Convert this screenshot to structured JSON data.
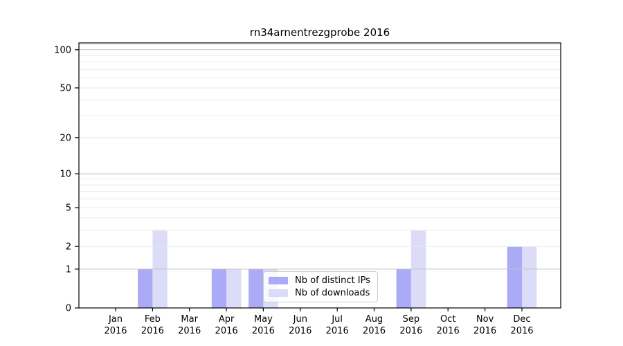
{
  "title": "rn34arnentrezgprobe 2016",
  "chart_data": {
    "type": "bar",
    "title": "rn34arnentrezgprobe 2016",
    "categories": [
      "Jan 2016",
      "Feb 2016",
      "Mar 2016",
      "Apr 2016",
      "May 2016",
      "Jun 2016",
      "Jul 2016",
      "Aug 2016",
      "Sep 2016",
      "Oct 2016",
      "Nov 2016",
      "Dec 2016"
    ],
    "series": [
      {
        "name": "Nb of distinct IPs",
        "color": "#aaaaf6",
        "values": [
          0,
          1,
          0,
          1,
          1,
          0,
          0,
          0,
          1,
          0,
          0,
          2
        ]
      },
      {
        "name": "Nb of downloads",
        "color": "#dcdcf9",
        "values": [
          0,
          3,
          0,
          1,
          1,
          0,
          0,
          0,
          3,
          0,
          0,
          2
        ]
      }
    ],
    "yscale": "log10(1+y)",
    "ylim": [
      0,
      112
    ],
    "yticks": [
      0,
      1,
      2,
      5,
      10,
      20,
      50,
      100
    ],
    "major_grid": [
      1,
      10,
      100
    ],
    "minor_grid": [
      2,
      3,
      4,
      5,
      6,
      7,
      8,
      9,
      20,
      30,
      40,
      50,
      60,
      70,
      80,
      90,
      110
    ],
    "grid": true,
    "legend_position": "lower center",
    "xlabel": "",
    "ylabel": ""
  },
  "colors": {
    "grid_major": "#c3c3c3",
    "grid_minor": "#eaeaea",
    "spine": "#000000",
    "tick_text": "#000000",
    "legend_border": "#cccccc"
  }
}
